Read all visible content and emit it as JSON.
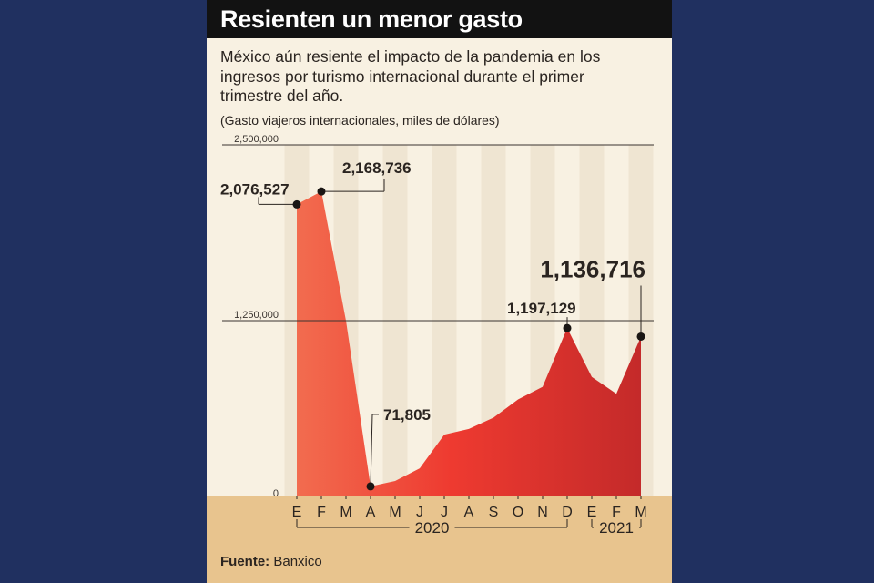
{
  "header": {
    "title": "Resienten un menor gasto"
  },
  "subtitle": "México aún resiente el impacto de la pandemia en los ingresos por turismo internacional durante el primer trimestre del año.",
  "unit_note": "(Gasto viajeros internacionales, miles de dólares)",
  "footer": {
    "source_label": "Fuente:",
    "source_value": "Banxico"
  },
  "colors": {
    "background": "#203060",
    "panel": "#f8f1e2",
    "band": "#e8c48e",
    "area_light": "#f26c4f",
    "area_mid": "#ee3a30",
    "area_dark": "#c42a2a"
  },
  "chart_data": {
    "type": "area",
    "title": "Resienten un menor gasto",
    "ylabel": "Gasto viajeros internacionales, miles de dólares",
    "ylim": [
      0,
      2500000
    ],
    "yticks": [
      0,
      1250000,
      2500000
    ],
    "ytick_labels": [
      "0",
      "1,250,000",
      "2,500,000"
    ],
    "categories": [
      "E",
      "F",
      "M",
      "A",
      "M",
      "J",
      "J",
      "A",
      "S",
      "O",
      "N",
      "D",
      "E",
      "F",
      "M"
    ],
    "years": [
      {
        "label": "2020",
        "from": 0,
        "to": 11
      },
      {
        "label": "2021",
        "from": 12,
        "to": 14
      }
    ],
    "values": [
      2076527,
      2168736,
      1250000,
      71805,
      110000,
      200000,
      440000,
      480000,
      560000,
      690000,
      780000,
      1197129,
      850000,
      730000,
      1136716
    ],
    "reference_line": 1250000,
    "annotations": [
      {
        "index": 0,
        "label": "2,076,527"
      },
      {
        "index": 1,
        "label": "2,168,736"
      },
      {
        "index": 3,
        "label": "71,805"
      },
      {
        "index": 11,
        "label": "1,197,129"
      },
      {
        "index": 14,
        "label": "1,136,716",
        "emphasis": true
      }
    ]
  }
}
